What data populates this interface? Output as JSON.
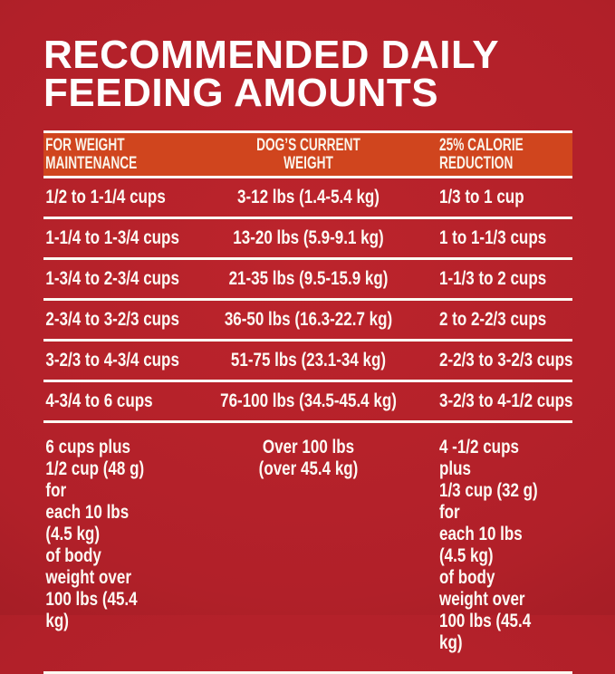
{
  "title_display": "RECOMMENDED DAILY\nFEEDING AMOUNTS",
  "header_display": {
    "maintenance": "FOR WEIGHT\nMAINTENANCE",
    "weight": "DOG’S CURRENT\nWEIGHT",
    "reduction": "25% CALORIE\nREDUCTION"
  },
  "colors": {
    "background_red": "#b12029",
    "background_red_edge": "#841318",
    "header_orange": "#d0451e",
    "divider_white": "#fcfaf2",
    "text_white": "#fdfaf4"
  },
  "chart_data": {
    "type": "table",
    "title": "RECOMMENDED DAILY FEEDING AMOUNTS",
    "columns": [
      "For Weight Maintenance",
      "Dog’s Current Weight",
      "25% Calorie Reduction"
    ],
    "rows": [
      [
        "1/2 to 1-1/4 cups",
        "3-12 lbs (1.4-5.4 kg)",
        "1/3 to 1 cup"
      ],
      [
        "1-1/4 to 1-3/4 cups",
        "13-20 lbs (5.9-9.1 kg)",
        "1 to 1-1/3 cups"
      ],
      [
        "1-3/4 to 2-3/4 cups",
        "21-35 lbs (9.5-15.9 kg)",
        "1-1/3 to 2 cups"
      ],
      [
        "2-3/4 to 3-2/3 cups",
        "36-50 lbs (16.3-22.7 kg)",
        "2 to 2-2/3 cups"
      ],
      [
        "3-2/3 to 4-3/4 cups",
        "51-75 lbs (23.1-34 kg)",
        "2-2/3 to 3-2/3 cups"
      ],
      [
        "4-3/4 to 6 cups",
        "76-100 lbs (34.5-45.4 kg)",
        "3-2/3 to 4-1/2 cups"
      ],
      [
        "6 cups plus\n1/2 cup (48 g) for\neach 10 lbs (4.5 kg)\nof body weight over\n100 lbs (45.4 kg)",
        "Over 100 lbs\n(over 45.4 kg)",
        "4 -1/2 cups plus\n1/3 cup (32 g) for\neach 10 lbs (4.5 kg)\nof body weight over\n100 lbs (45.4 kg)"
      ]
    ]
  }
}
